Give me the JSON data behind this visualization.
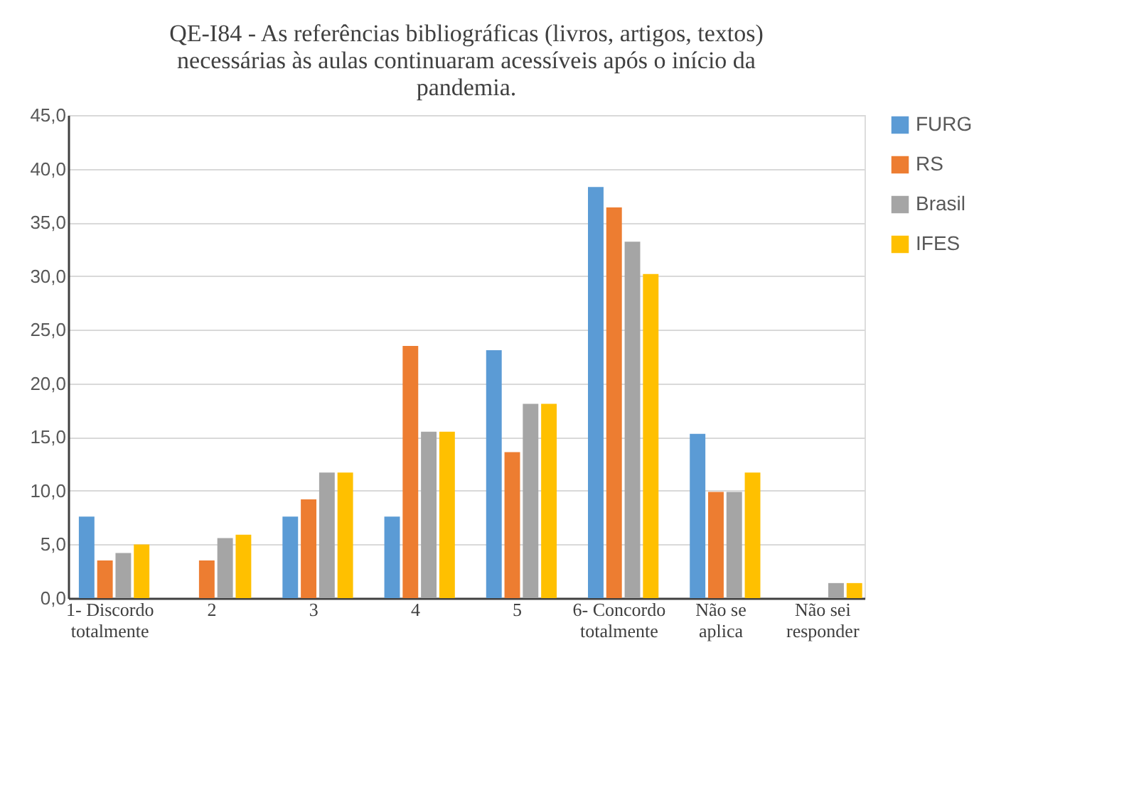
{
  "chart_data": {
    "type": "bar",
    "title": "QE-I84 - As referências bibliográficas (livros, artigos, textos) necessárias às aulas continuaram acessíveis após o início da pandemia.",
    "categories": [
      "1- Discordo totalmente",
      "2",
      "3",
      "4",
      "5",
      "6- Concordo totalmente",
      "Não se aplica",
      "Não sei responder"
    ],
    "series": [
      {
        "name": "FURG",
        "color": "#5b9bd5",
        "values": [
          7.6,
          0,
          7.6,
          7.6,
          23.1,
          38.3,
          15.3,
          0
        ]
      },
      {
        "name": "RS",
        "color": "#ed7d31",
        "values": [
          3.5,
          3.5,
          9.2,
          23.5,
          13.6,
          36.4,
          9.9,
          0
        ]
      },
      {
        "name": "Brasil",
        "color": "#a5a5a5",
        "values": [
          4.2,
          5.6,
          11.7,
          15.5,
          18.1,
          33.2,
          9.9,
          1.4
        ]
      },
      {
        "name": "IFES",
        "color": "#ffc000",
        "values": [
          5.0,
          5.9,
          11.7,
          15.5,
          18.1,
          30.2,
          11.7,
          1.4
        ]
      }
    ],
    "ylim": [
      0,
      45
    ],
    "yticks": [
      {
        "value": 0,
        "label": "0,0"
      },
      {
        "value": 5,
        "label": "5,0"
      },
      {
        "value": 10,
        "label": "10,0"
      },
      {
        "value": 15,
        "label": "15,0"
      },
      {
        "value": 20,
        "label": "20,0"
      },
      {
        "value": 25,
        "label": "25,0"
      },
      {
        "value": 30,
        "label": "30,0"
      },
      {
        "value": 35,
        "label": "35,0"
      },
      {
        "value": 40,
        "label": "40,0"
      },
      {
        "value": 45,
        "label": "45,0"
      }
    ],
    "grid": "y",
    "legend": "right"
  }
}
